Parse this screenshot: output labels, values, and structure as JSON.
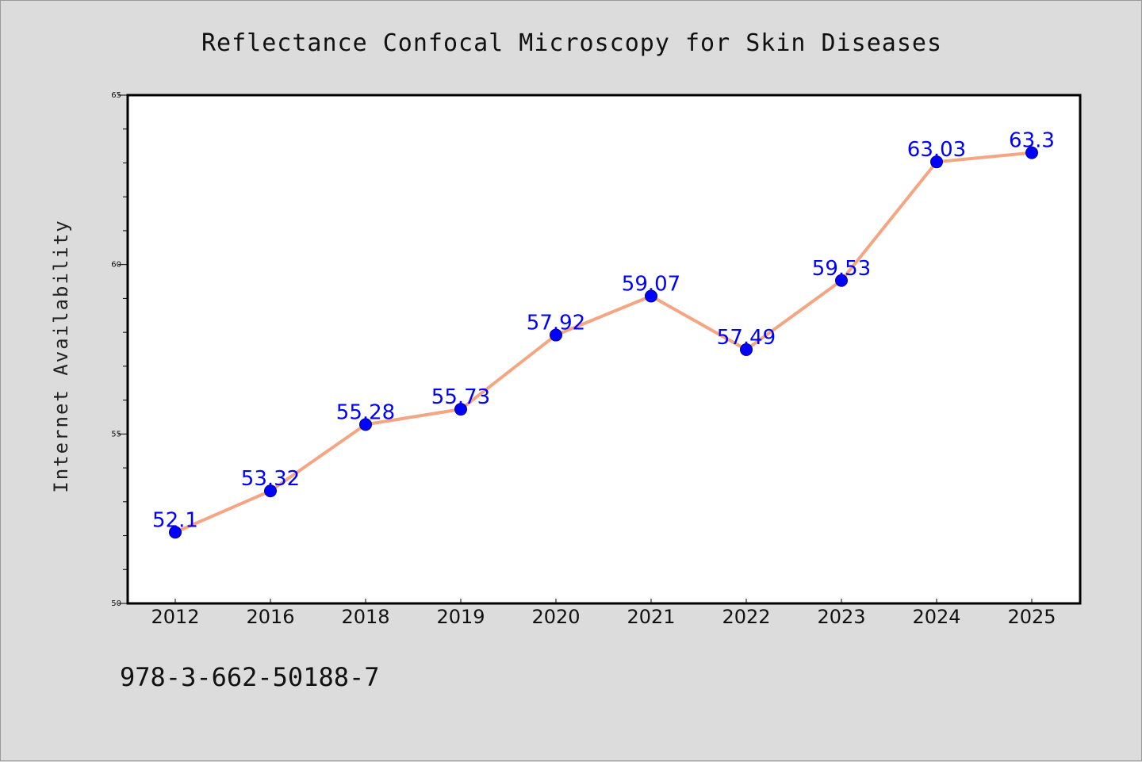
{
  "chart_data": {
    "type": "line",
    "title": "Reflectance Confocal Microscopy for Skin Diseases",
    "xlabel": "",
    "ylabel": "Internet Availability",
    "categories": [
      "2012",
      "2016",
      "2018",
      "2019",
      "2020",
      "2021",
      "2022",
      "2023",
      "2024",
      "2025"
    ],
    "series": [
      {
        "values": [
          52.1,
          53.32,
          55.28,
          55.73,
          57.92,
          59.07,
          57.49,
          59.53,
          63.03,
          63.3
        ],
        "labels": [
          "52.1",
          "53.32",
          "55.28",
          "55.73",
          "57.92",
          "59.07",
          "57.49",
          "59.53",
          "63.03",
          "63.3"
        ],
        "line_color": "#f4a582",
        "marker_color": "#0000ff",
        "label_color": "#0000ff"
      }
    ],
    "ylim": [
      50,
      65
    ],
    "yticks": [
      "50",
      "55",
      "60",
      "65"
    ],
    "grid": false,
    "legend": "none"
  },
  "footer": {
    "isbn": "978-3-662-50188-7"
  },
  "colors": {
    "background": "#dcdcdc",
    "plot_background": "#ffffff"
  }
}
